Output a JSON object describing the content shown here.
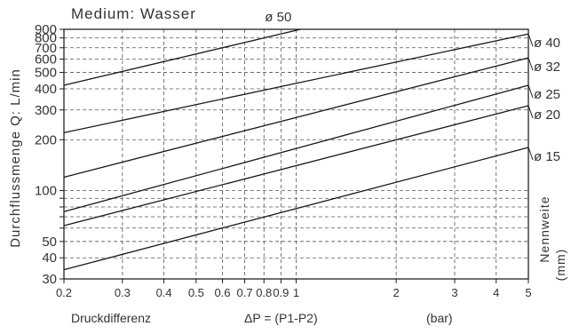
{
  "chart_data": {
    "type": "line",
    "title": "Medium: Wasser",
    "ylabel": "Durchflussmenge Q: L/min",
    "xlabel_parts": [
      "Druckdifferenz",
      "ΔP = (P1-P2)",
      "(bar)"
    ],
    "right_label_lines": [
      "Nennweite",
      "(mm)"
    ],
    "x_scale": "log",
    "y_scale": "log",
    "xlim": [
      0.2,
      5
    ],
    "ylim": [
      30,
      900
    ],
    "x_ticks": [
      0.2,
      0.3,
      0.4,
      0.5,
      0.6,
      0.7,
      0.8,
      0.9,
      1,
      2,
      3,
      4,
      5
    ],
    "x_tick_labels": [
      "0.2",
      "0.3",
      "0.4",
      "0.5",
      "0.6",
      "0.7",
      "0.8",
      "0.9",
      "1",
      "2",
      "3",
      "4",
      "5"
    ],
    "y_ticks": [
      30,
      40,
      50,
      60,
      70,
      80,
      90,
      100,
      200,
      300,
      400,
      500,
      600,
      700,
      800,
      900
    ],
    "y_tick_labels": [
      "30",
      "40",
      "50",
      "",
      "",
      "",
      "",
      "100",
      "200",
      "300",
      "400",
      "500",
      "600",
      "700",
      "800",
      "900"
    ],
    "grid": true,
    "series": [
      {
        "name": "ø 15",
        "x": [
          0.2,
          5
        ],
        "y": [
          34,
          180
        ]
      },
      {
        "name": "ø 20",
        "x": [
          0.2,
          5
        ],
        "y": [
          62,
          318
        ]
      },
      {
        "name": "ø 25",
        "x": [
          0.2,
          5
        ],
        "y": [
          75,
          420
        ]
      },
      {
        "name": "ø 32",
        "x": [
          0.2,
          5
        ],
        "y": [
          120,
          610
        ]
      },
      {
        "name": "ø 40",
        "x": [
          0.2,
          5
        ],
        "y": [
          220,
          845
        ]
      },
      {
        "name": "ø 50",
        "x": [
          0.2,
          1.03
        ],
        "y": [
          420,
          900
        ]
      }
    ]
  }
}
